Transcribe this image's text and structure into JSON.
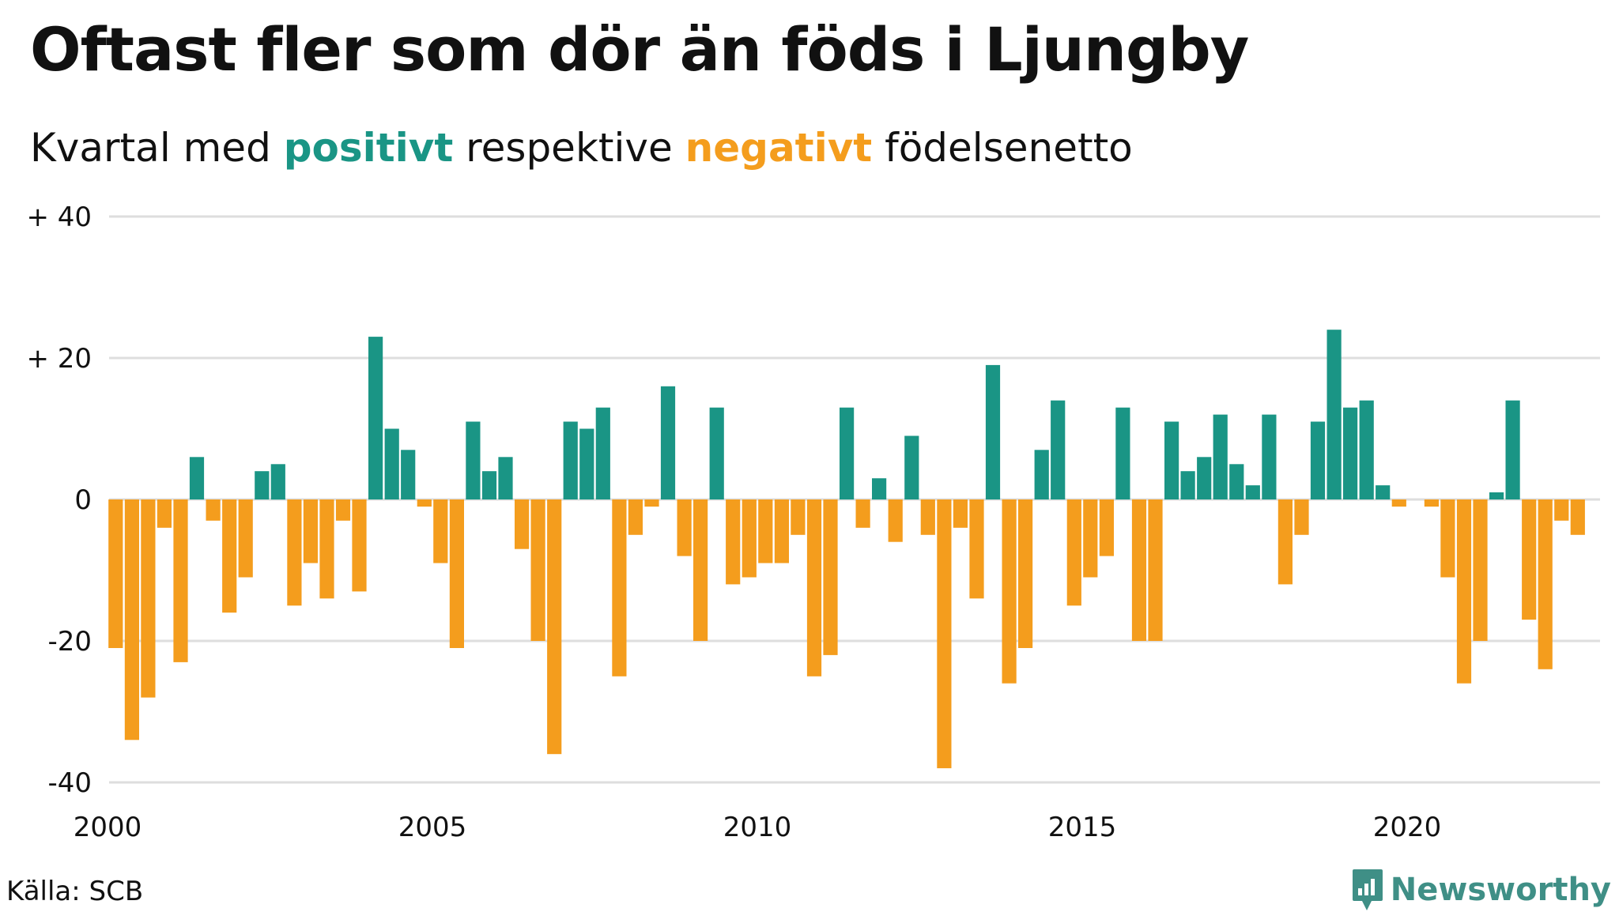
{
  "chart_data": {
    "type": "bar",
    "title": "Oftast fler som dör än föds i Ljungby",
    "subtitle": {
      "before": "Kvartal med ",
      "positive_word": "positivt",
      "middle": " respektive ",
      "negative_word": "negativt",
      "after": " födelsenetto"
    },
    "xlabel": "",
    "ylabel": "",
    "ylim": [
      -40,
      40
    ],
    "yticks": [
      {
        "value": 40,
        "label": "+ 40"
      },
      {
        "value": 20,
        "label": "+ 20"
      },
      {
        "value": 0,
        "label": "0"
      },
      {
        "value": -20,
        "label": "-20"
      },
      {
        "value": -40,
        "label": "-40"
      }
    ],
    "xticks": [
      {
        "value": 2000,
        "label": "2000"
      },
      {
        "value": 2005,
        "label": "2005"
      },
      {
        "value": 2010,
        "label": "2010"
      },
      {
        "value": 2015,
        "label": "2015"
      },
      {
        "value": 2020,
        "label": "2020"
      }
    ],
    "x_unit": "quarter",
    "start": "2000 Q1",
    "grid": true,
    "legend": "none",
    "positive_color": "#1a9585",
    "negative_color": "#f49d1d",
    "values": [
      -21,
      -34,
      -28,
      -4,
      -23,
      6,
      -3,
      -16,
      -11,
      4,
      5,
      -15,
      -9,
      -14,
      -3,
      -13,
      23,
      10,
      7,
      -1,
      -9,
      -21,
      11,
      4,
      6,
      -7,
      -20,
      -36,
      11,
      10,
      13,
      -25,
      -5,
      -1,
      16,
      -8,
      -20,
      13,
      -12,
      -11,
      -9,
      -9,
      -5,
      -25,
      -22,
      13,
      -4,
      3,
      -6,
      9,
      -5,
      -38,
      -4,
      -14,
      19,
      -26,
      -21,
      7,
      14,
      -15,
      -11,
      -8,
      13,
      -20,
      -20,
      11,
      4,
      6,
      12,
      5,
      2,
      12,
      -12,
      -5,
      11,
      24,
      13,
      14,
      2,
      -1,
      0,
      -1,
      -11,
      -26,
      -20,
      1,
      14,
      -17,
      -24,
      -3,
      -5
    ]
  },
  "source": "Källa: SCB",
  "logo": {
    "text": "Newsworthy",
    "icon": "newsworthy-logo-icon",
    "color": "#3f8f86"
  }
}
